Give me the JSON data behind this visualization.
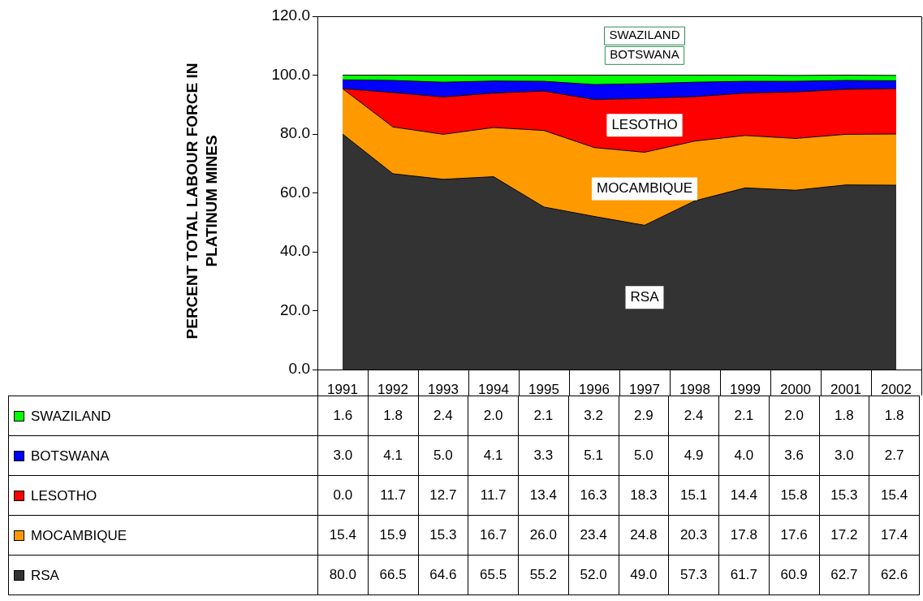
{
  "chart_data": {
    "type": "area",
    "stacked": true,
    "ylabel": "PERCENT TOTAL LABOUR FORCE IN PLATINUM MINES",
    "categories": [
      "1991",
      "1992",
      "1993",
      "1994",
      "1995",
      "1996",
      "1997",
      "1998",
      "1999",
      "2000",
      "2001",
      "2002"
    ],
    "ylim": [
      0,
      120
    ],
    "yticks": [
      {
        "value": 0,
        "label": "0.0"
      },
      {
        "value": 20,
        "label": "20.0"
      },
      {
        "value": 40,
        "label": "40.0"
      },
      {
        "value": 60,
        "label": "60.0"
      },
      {
        "value": 80,
        "label": "80.0"
      },
      {
        "value": 100,
        "label": "100.0"
      },
      {
        "value": 120,
        "label": "120.0"
      }
    ],
    "legend": "bottom",
    "series": [
      {
        "name": "RSA",
        "color": "#333333",
        "values": [
          80.0,
          66.5,
          64.6,
          65.5,
          55.2,
          52.0,
          49.0,
          57.3,
          61.7,
          60.9,
          62.7,
          62.6
        ],
        "value_labels": [
          "80.0",
          "66.5",
          "64.6",
          "65.5",
          "55.2",
          "52.0",
          "49.0",
          "57.3",
          "61.7",
          "60.9",
          "62.7",
          "62.6"
        ]
      },
      {
        "name": "MOCAMBIQUE",
        "color": "#ff9900",
        "values": [
          15.4,
          15.9,
          15.3,
          16.7,
          26.0,
          23.4,
          24.8,
          20.3,
          17.8,
          17.6,
          17.2,
          17.4
        ],
        "value_labels": [
          "15.4",
          "15.9",
          "15.3",
          "16.7",
          "26.0",
          "23.4",
          "24.8",
          "20.3",
          "17.8",
          "17.6",
          "17.2",
          "17.4"
        ]
      },
      {
        "name": "LESOTHO",
        "color": "#ff0000",
        "values": [
          0.0,
          11.7,
          12.7,
          11.7,
          13.4,
          16.3,
          18.3,
          15.1,
          14.4,
          15.8,
          15.3,
          15.4
        ],
        "value_labels": [
          "0.0",
          "11.7",
          "12.7",
          "11.7",
          "13.4",
          "16.3",
          "18.3",
          "15.1",
          "14.4",
          "15.8",
          "15.3",
          "15.4"
        ]
      },
      {
        "name": "BOTSWANA",
        "color": "#0000ff",
        "values": [
          3.0,
          4.1,
          5.0,
          4.1,
          3.3,
          5.1,
          5.0,
          4.9,
          4.0,
          3.6,
          3.0,
          2.7
        ],
        "value_labels": [
          "3.0",
          "4.1",
          "5.0",
          "4.1",
          "3.3",
          "5.1",
          "5.0",
          "4.9",
          "4.0",
          "3.6",
          "3.0",
          "2.7"
        ]
      },
      {
        "name": "SWAZILAND",
        "color": "#00ff00",
        "values": [
          1.6,
          1.8,
          2.4,
          2.0,
          2.1,
          3.2,
          2.9,
          2.4,
          2.1,
          2.0,
          1.8,
          1.8
        ],
        "value_labels": [
          "1.6",
          "1.8",
          "2.4",
          "2.0",
          "2.1",
          "3.2",
          "2.9",
          "2.4",
          "2.1",
          "2.0",
          "1.8",
          "1.8"
        ]
      }
    ]
  }
}
